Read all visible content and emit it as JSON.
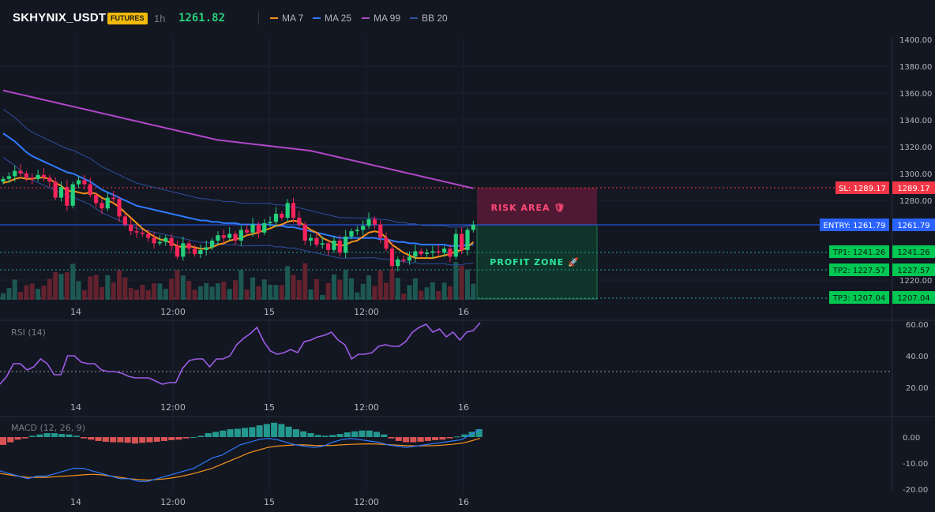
{
  "header": {
    "symbol": "SKHYNIX_USDT",
    "badge": "FUTURES",
    "timeframe": "1h",
    "last_price": "1261.82",
    "legend": [
      {
        "label": "MA 7",
        "color": "#f7931a"
      },
      {
        "label": "MA 25",
        "color": "#2f7bff"
      },
      {
        "label": "MA 99",
        "color": "#b147c9"
      },
      {
        "label": "BB 20",
        "color": "#2f4f9f"
      }
    ]
  },
  "main_chart": {
    "price_axis": [
      "1400.00",
      "1380.00",
      "1360.00",
      "1340.00",
      "1320.00",
      "1300.00",
      "1280.00",
      "1220.00"
    ],
    "time_axis": [
      "14",
      "12:00",
      "15",
      "12:00",
      "16"
    ],
    "risk_label": "RISK AREA 🛡",
    "profit_label": "PROFIT ZONE 🚀",
    "levels": [
      {
        "label": "SL: 1289.17",
        "value": "1289.17",
        "color": "#f23645"
      },
      {
        "label": "ENTRY: 1261.79",
        "value": "1261.79",
        "color": "#2962ff"
      },
      {
        "label": "TP1: 1241.26",
        "value": "1241.26",
        "color": "#22ab59"
      },
      {
        "label": "TP2: 1227.57",
        "value": "1227.57",
        "color": "#22ab59"
      },
      {
        "label": "TP3: 1207.04",
        "value": "1207.04",
        "color": "#22ab59"
      }
    ]
  },
  "rsi": {
    "title": "RSI (14)",
    "axis": [
      "60.00",
      "40.00",
      "20.00"
    ],
    "time_axis": [
      "14",
      "12:00",
      "15",
      "12:00",
      "16"
    ]
  },
  "macd": {
    "title": "MACD (12, 26, 9)",
    "axis": [
      "0.00",
      "-10.00",
      "-20.00"
    ],
    "time_axis": [
      "14",
      "12:00",
      "15",
      "12:00",
      "16"
    ]
  },
  "chart_data": {
    "type": "candlestick",
    "interval": "1h",
    "closes": [
      1296,
      1298,
      1302,
      1300,
      1297,
      1296,
      1299,
      1297,
      1294,
      1282,
      1290,
      1276,
      1292,
      1295,
      1292,
      1284,
      1278,
      1274,
      1282,
      1281,
      1268,
      1262,
      1257,
      1256,
      1255,
      1252,
      1248,
      1249,
      1252,
      1246,
      1238,
      1248,
      1244,
      1240,
      1243,
      1245,
      1250,
      1254,
      1252,
      1255,
      1250,
      1258,
      1256,
      1262,
      1256,
      1263,
      1264,
      1270,
      1267,
      1278,
      1267,
      1262,
      1250,
      1252,
      1247,
      1248,
      1243,
      1250,
      1241,
      1253,
      1257,
      1258,
      1261,
      1266,
      1262,
      1252,
      1244,
      1231,
      1236,
      1235,
      1238,
      1242,
      1240,
      1241,
      1242,
      1241,
      1244,
      1238,
      1255,
      1243,
      1258,
      1261.82
    ],
    "ma7": [
      1293,
      1294,
      1296,
      1297,
      1296,
      1296,
      1297,
      1297,
      1296,
      1293,
      1291,
      1287,
      1287,
      1286,
      1285,
      1286,
      1285,
      1282,
      1280,
      1278,
      1275,
      1271,
      1267,
      1263,
      1259,
      1256,
      1253,
      1251,
      1250,
      1248,
      1246,
      1245,
      1246,
      1245,
      1244,
      1244,
      1245,
      1247,
      1248,
      1250,
      1251,
      1252,
      1254,
      1255,
      1256,
      1258,
      1259,
      1261,
      1262,
      1264,
      1265,
      1264,
      1261,
      1258,
      1256,
      1252,
      1250,
      1248,
      1246,
      1247,
      1249,
      1250,
      1253,
      1256,
      1257,
      1256,
      1252,
      1247,
      1244,
      1241,
      1239,
      1237,
      1237,
      1237,
      1237,
      1238,
      1239,
      1240,
      1242,
      1243,
      1245,
      1249
    ],
    "ma25": [
      1330,
      1327,
      1324,
      1320,
      1316,
      1313,
      1311,
      1309,
      1307,
      1305,
      1303,
      1301,
      1300,
      1298,
      1296,
      1294,
      1291,
      1288,
      1286,
      1284,
      1282,
      1280,
      1278,
      1276,
      1275,
      1274,
      1273,
      1272,
      1271,
      1270,
      1269,
      1268,
      1267,
      1266,
      1265,
      1265,
      1264,
      1264,
      1263,
      1263,
      1263,
      1262,
      1262,
      1262,
      1262,
      1262,
      1262,
      1261,
      1261,
      1260,
      1260,
      1259,
      1258,
      1257,
      1256,
      1255,
      1254,
      1253,
      1252,
      1252,
      1252,
      1252,
      1252,
      1252,
      1252,
      1251,
      1251,
      1250,
      1249,
      1249,
      1248,
      1248,
      1247,
      1247,
      1247,
      1247,
      1247,
      1246,
      1246,
      1246,
      1247,
      1247
    ],
    "ma99": [
      1362,
      1361,
      1360,
      1359,
      1358,
      1357,
      1356,
      1355,
      1354,
      1353,
      1352,
      1351,
      1350,
      1349,
      1348,
      1347,
      1346,
      1345,
      1344,
      1343,
      1342,
      1341,
      1340,
      1339,
      1338,
      1337,
      1336,
      1335,
      1334,
      1333,
      1332,
      1331,
      1330,
      1329,
      1328,
      1327,
      1326,
      1325,
      1324.5,
      1324,
      1323.5,
      1323,
      1322.5,
      1322,
      1321.5,
      1321,
      1320.5,
      1320,
      1319.5,
      1319,
      1318.5,
      1318,
      1317.5,
      1317,
      1316,
      1315,
      1314,
      1313,
      1312,
      1311,
      1310,
      1309,
      1308,
      1307,
      1306,
      1305,
      1304,
      1303,
      1302,
      1301,
      1300,
      1299,
      1298,
      1297,
      1296,
      1295,
      1294,
      1293,
      1292,
      1291,
      1290,
      1289
    ],
    "rsi": [
      22,
      27,
      35,
      35,
      31,
      33,
      38,
      35,
      28,
      28,
      40,
      40,
      36,
      35,
      35,
      31,
      30,
      30,
      29,
      27,
      26,
      26,
      26,
      24,
      22,
      23,
      23,
      32,
      37,
      38,
      38,
      33,
      38,
      38,
      40,
      47,
      51,
      54,
      58,
      49,
      43,
      41,
      42,
      44,
      42,
      49,
      50,
      52,
      53,
      55,
      50,
      47,
      38,
      41,
      41,
      42,
      46,
      47,
      46,
      46,
      49,
      55,
      58,
      60,
      55,
      57,
      52,
      55,
      50,
      55,
      56,
      61
    ],
    "macd_hist": [
      -3,
      -2,
      -1,
      -0.5,
      0.5,
      1,
      1.5,
      1.5,
      1.2,
      1,
      0.5,
      -0.5,
      -1,
      -1.5,
      -1.8,
      -2,
      -2,
      -2.2,
      -2.5,
      -2.2,
      -2,
      -1.8,
      -1.5,
      -1.2,
      -1,
      -0.5,
      0,
      0.5,
      1.5,
      2,
      2.5,
      3,
      3.2,
      3.5,
      3.8,
      4.5,
      5,
      5.5,
      5,
      4,
      3,
      2.2,
      1.5,
      0.8,
      0.5,
      0.8,
      1.2,
      1.8,
      2.2,
      2.5,
      2.5,
      2,
      1,
      -0.5,
      -1.5,
      -2,
      -2,
      -1.8,
      -1.5,
      -1.2,
      -1,
      -0.5,
      0.2,
      1,
      2,
      3
    ],
    "macd_line": [
      -13,
      -14,
      -15,
      -16,
      -15,
      -15,
      -14,
      -13,
      -12,
      -12,
      -13,
      -14,
      -15,
      -16,
      -16,
      -17,
      -17,
      -16,
      -15,
      -14,
      -13,
      -12,
      -10,
      -8,
      -7,
      -5,
      -3,
      -2,
      -1,
      -0.5,
      -1,
      -2,
      -3,
      -3.5,
      -4,
      -3.5,
      -2,
      -1,
      -0.5,
      -1,
      -1.5,
      -2,
      -3,
      -3.5,
      -4,
      -3.5,
      -3,
      -2.5,
      -2,
      -1.5,
      -1,
      1,
      3
    ],
    "signal_line": [
      -14,
      -14.5,
      -15,
      -15.5,
      -15.5,
      -15.5,
      -15.2,
      -15,
      -14.8,
      -14.5,
      -14.3,
      -14.5,
      -15,
      -15.5,
      -16,
      -16.3,
      -16.5,
      -16.3,
      -16,
      -15.5,
      -14.8,
      -14,
      -13,
      -12,
      -10.5,
      -9,
      -7.5,
      -6,
      -5,
      -4,
      -3.5,
      -3.2,
      -3,
      -3,
      -3.2,
      -3.3,
      -3.2,
      -3,
      -2.8,
      -2.7,
      -2.6,
      -2.7,
      -2.9,
      -3.1,
      -3.3,
      -3.4,
      -3.4,
      -3.3,
      -3.1,
      -2.8,
      -2.4,
      -1.5,
      -0.5
    ],
    "price_range": [
      1210,
      1400
    ],
    "rsi_range": [
      12,
      65
    ],
    "macd_range": [
      -21,
      4
    ]
  }
}
